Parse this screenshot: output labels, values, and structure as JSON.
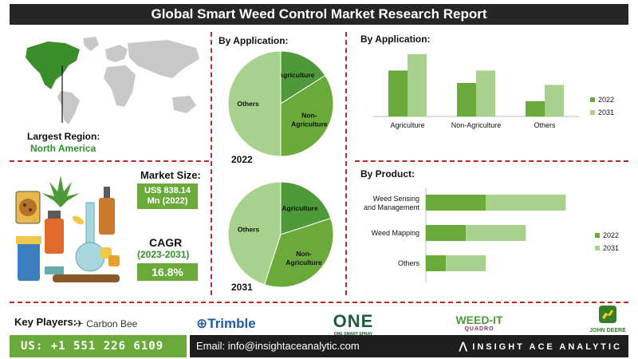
{
  "header": {
    "title": "Global Smart Weed Control Market Research Report"
  },
  "region": {
    "label": "Largest Region:",
    "value": "North America"
  },
  "market": {
    "size_label": "Market Size:",
    "size_value_line1": "US$ 838.14",
    "size_value_line2": "Mn (2022)",
    "cagr_label": "CAGR",
    "cagr_period": "(2023-2031)",
    "cagr_value": "16.8%"
  },
  "key_players": {
    "label": "Key Players:",
    "logos": [
      "Carbon Bee",
      "Trimble",
      "ONE",
      "ONE SMART SPRAY",
      "WEED-IT",
      "QUADRO",
      "JOHN DEERE"
    ]
  },
  "footer": {
    "phone": "US: +1 551 226 6109",
    "email": "Email: info@insightaceanalytic.com",
    "brand": "INSIGHT ACE ANALYTIC"
  },
  "colors": {
    "dark_green": "#4e9a3a",
    "light_green": "#a9d18e",
    "mid_green": "#6aaa3a",
    "accent_red": "#b52a2a"
  },
  "chart_data": [
    {
      "type": "pie",
      "title": "By Application:",
      "year_label": "2022",
      "slices": [
        {
          "label": "Agriculture",
          "value": 16
        },
        {
          "label": "Non-Agriculture",
          "value": 34
        },
        {
          "label": "Others",
          "value": 50
        }
      ]
    },
    {
      "type": "pie",
      "title": "",
      "year_label": "2031",
      "slices": [
        {
          "label": "Agriculture",
          "value": 20
        },
        {
          "label": "Non-Agriculture",
          "value": 35
        },
        {
          "label": "Others",
          "value": 45
        }
      ]
    },
    {
      "type": "bar",
      "orientation": "vertical",
      "title": "By Application:",
      "categories": [
        "Agriculture",
        "Non-Agriculture",
        "Others"
      ],
      "series": [
        {
          "name": "2022",
          "values": [
            48,
            35,
            16
          ]
        },
        {
          "name": "2031",
          "values": [
            65,
            48,
            33
          ]
        }
      ],
      "ylim": [
        0,
        70
      ],
      "legend": "right",
      "grid": false
    },
    {
      "type": "bar",
      "orientation": "horizontal-stacked",
      "title": "By Product:",
      "categories": [
        "Weed Sensing and Management",
        "Weed Mapping",
        "Others"
      ],
      "series": [
        {
          "name": "2022",
          "values": [
            30,
            20,
            10
          ]
        },
        {
          "name": "2031",
          "values": [
            40,
            30,
            20
          ]
        }
      ],
      "xlim": [
        0,
        75
      ],
      "legend": "right",
      "grid": false
    }
  ]
}
